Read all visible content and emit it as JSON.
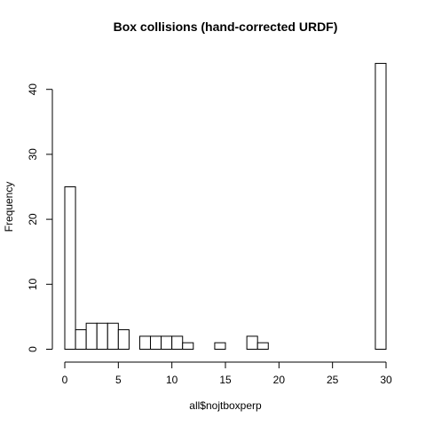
{
  "chart_data": {
    "type": "bar",
    "title": "Box collisions (hand-corrected URDF)",
    "xlabel": "all$nojtboxperp",
    "ylabel": "Frequency",
    "bin_width": 1,
    "bins": [
      {
        "start": 0,
        "end": 1,
        "count": 25
      },
      {
        "start": 1,
        "end": 2,
        "count": 3
      },
      {
        "start": 2,
        "end": 3,
        "count": 4
      },
      {
        "start": 3,
        "end": 4,
        "count": 4
      },
      {
        "start": 4,
        "end": 5,
        "count": 4
      },
      {
        "start": 5,
        "end": 6,
        "count": 3
      },
      {
        "start": 6,
        "end": 7,
        "count": 0
      },
      {
        "start": 7,
        "end": 8,
        "count": 2
      },
      {
        "start": 8,
        "end": 9,
        "count": 2
      },
      {
        "start": 9,
        "end": 10,
        "count": 2
      },
      {
        "start": 10,
        "end": 11,
        "count": 2
      },
      {
        "start": 11,
        "end": 12,
        "count": 1
      },
      {
        "start": 12,
        "end": 13,
        "count": 0
      },
      {
        "start": 13,
        "end": 14,
        "count": 0
      },
      {
        "start": 14,
        "end": 15,
        "count": 1
      },
      {
        "start": 15,
        "end": 16,
        "count": 0
      },
      {
        "start": 16,
        "end": 17,
        "count": 0
      },
      {
        "start": 17,
        "end": 18,
        "count": 2
      },
      {
        "start": 18,
        "end": 19,
        "count": 1
      },
      {
        "start": 19,
        "end": 20,
        "count": 0
      },
      {
        "start": 20,
        "end": 21,
        "count": 0
      },
      {
        "start": 21,
        "end": 22,
        "count": 0
      },
      {
        "start": 22,
        "end": 23,
        "count": 0
      },
      {
        "start": 23,
        "end": 24,
        "count": 0
      },
      {
        "start": 24,
        "end": 25,
        "count": 0
      },
      {
        "start": 25,
        "end": 26,
        "count": 0
      },
      {
        "start": 26,
        "end": 27,
        "count": 0
      },
      {
        "start": 27,
        "end": 28,
        "count": 0
      },
      {
        "start": 28,
        "end": 29,
        "count": 0
      },
      {
        "start": 29,
        "end": 30,
        "count": 44
      }
    ],
    "xlim": [
      0,
      30
    ],
    "ylim": [
      0,
      44
    ],
    "x_ticks": [
      "0",
      "5",
      "10",
      "15",
      "20",
      "25",
      "30"
    ],
    "y_ticks": [
      "0",
      "10",
      "20",
      "30",
      "40"
    ],
    "grid": false,
    "bar_fill": "#ffffff",
    "bar_stroke": "#000000"
  }
}
